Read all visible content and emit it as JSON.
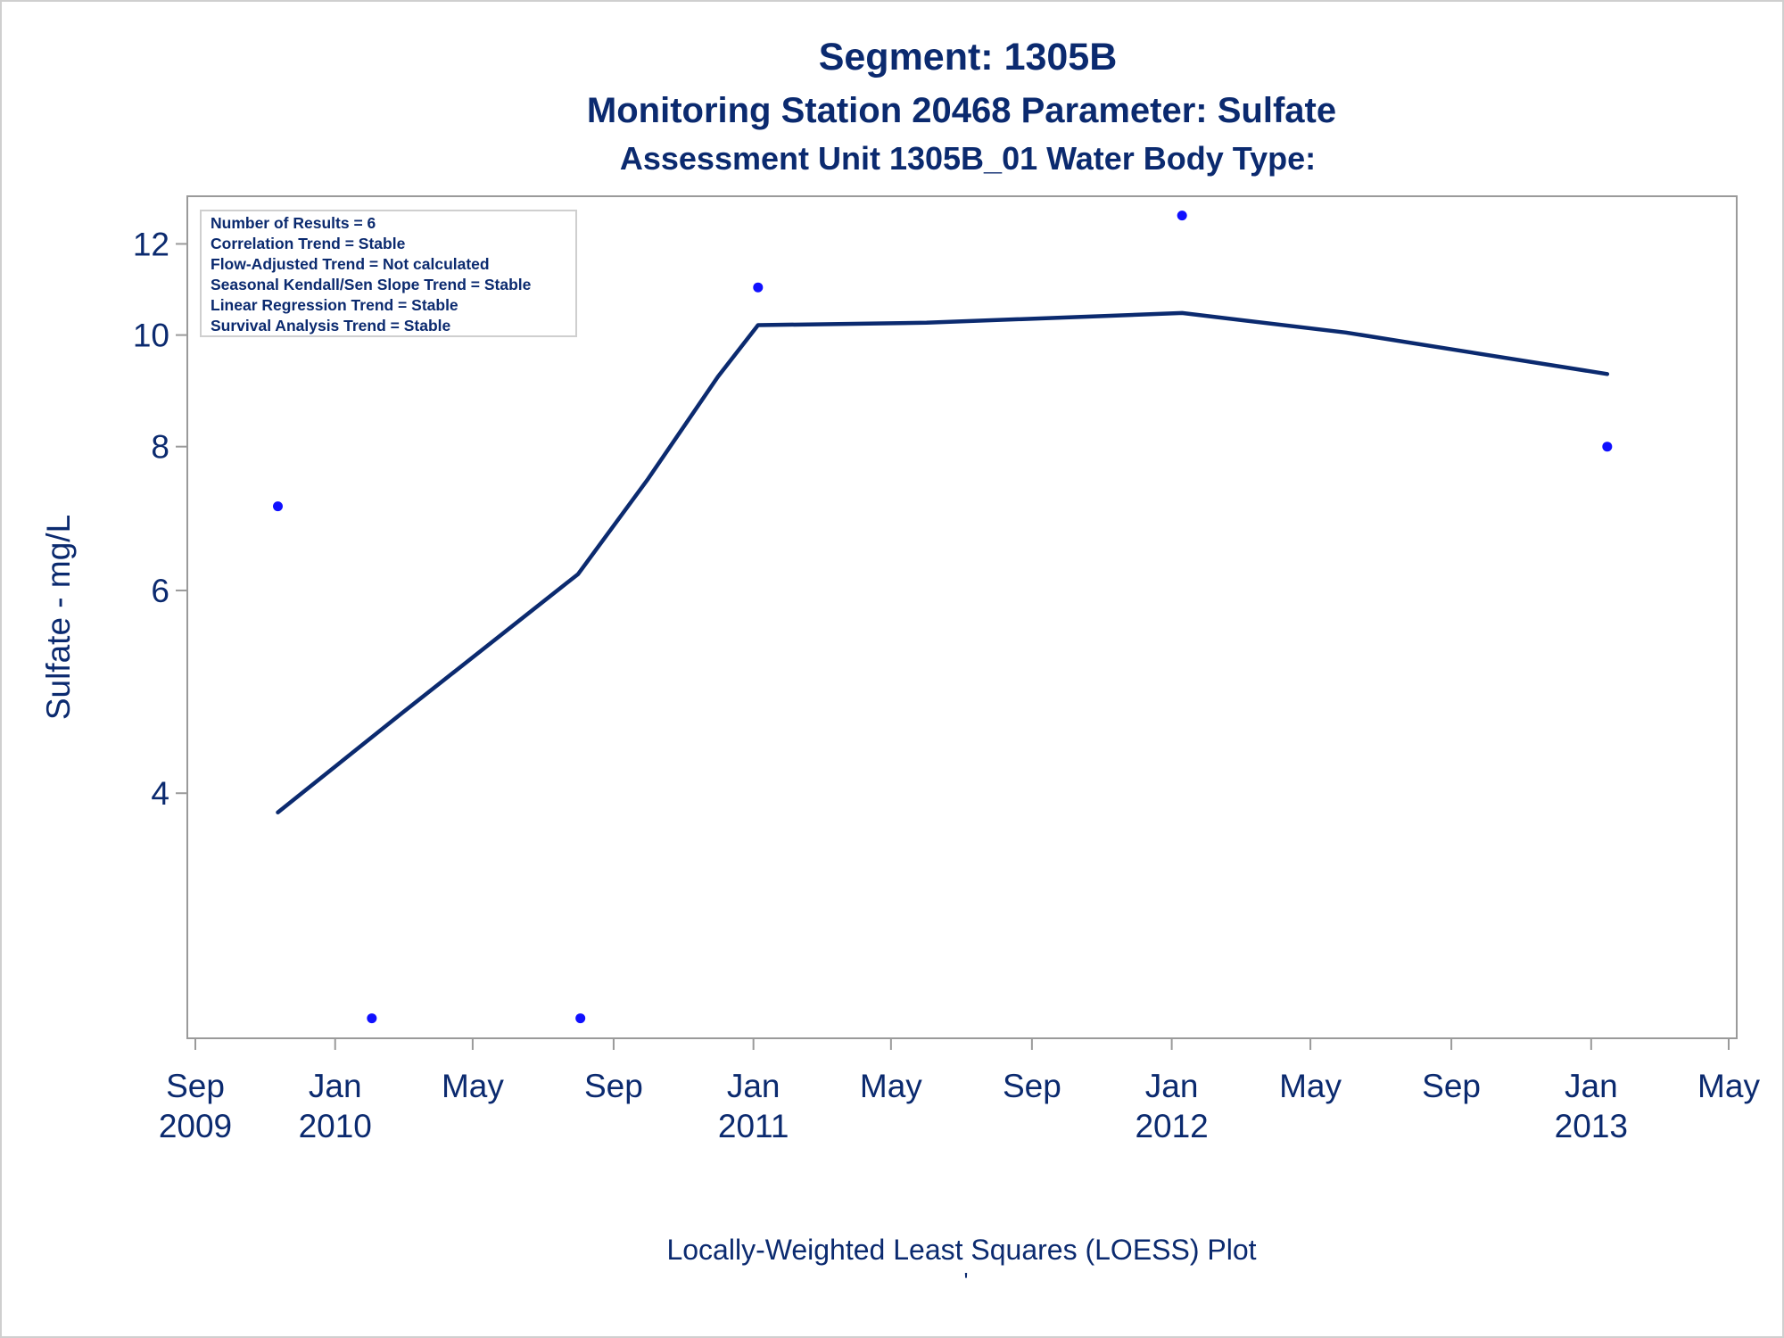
{
  "titles": {
    "line1": "Segment: 1305B",
    "line2": "Monitoring Station 20468 Parameter: Sulfate",
    "line3": "Assessment Unit 1305B_01   Water Body Type:"
  },
  "stats_box": [
    "Number of Results = 6",
    "Correlation Trend = Stable",
    "Flow-Adjusted Trend = Not calculated",
    "Seasonal Kendall/Sen Slope Trend = Stable",
    "Linear Regression Trend = Stable",
    "Survival Analysis Trend = Stable"
  ],
  "footnote": "Locally-Weighted Least Squares (LOESS) Plot",
  "footnote2": "'",
  "colors": {
    "text": "#0b2a6f",
    "line": "#0b2a6f",
    "points": "#1010ff",
    "frame": "#9a9a9a"
  },
  "chart_data": {
    "type": "scatter",
    "xlabel": "",
    "ylabel": "Sulfate - mg/L",
    "y_scale": "log",
    "ylim": [
      2.45,
      13.2
    ],
    "xlim": [
      "2009-08-25",
      "2013-05-08"
    ],
    "y_ticks": [
      4,
      6,
      8,
      10,
      12
    ],
    "x_ticks": [
      {
        "date": "2009-09-01",
        "month": "Sep",
        "year": "2009"
      },
      {
        "date": "2010-01-01",
        "month": "Jan",
        "year": "2010"
      },
      {
        "date": "2010-05-01",
        "month": "May",
        "year": ""
      },
      {
        "date": "2010-09-01",
        "month": "Sep",
        "year": ""
      },
      {
        "date": "2011-01-01",
        "month": "Jan",
        "year": "2011"
      },
      {
        "date": "2011-05-01",
        "month": "May",
        "year": ""
      },
      {
        "date": "2011-09-01",
        "month": "Sep",
        "year": ""
      },
      {
        "date": "2012-01-01",
        "month": "Jan",
        "year": "2012"
      },
      {
        "date": "2012-05-01",
        "month": "May",
        "year": ""
      },
      {
        "date": "2012-09-01",
        "month": "Sep",
        "year": ""
      },
      {
        "date": "2013-01-01",
        "month": "Jan",
        "year": "2013"
      },
      {
        "date": "2013-05-01",
        "month": "May",
        "year": ""
      }
    ],
    "points": [
      {
        "x": "2009-11-12",
        "y": 7.1
      },
      {
        "x": "2010-02-02",
        "y": 2.55
      },
      {
        "x": "2010-08-03",
        "y": 2.55
      },
      {
        "x": "2011-01-05",
        "y": 11.0
      },
      {
        "x": "2012-01-10",
        "y": 12.7
      },
      {
        "x": "2013-01-15",
        "y": 8.0
      }
    ],
    "loess": [
      {
        "x": "2009-11-12",
        "y": 3.85
      },
      {
        "x": "2010-03-01",
        "y": 4.7
      },
      {
        "x": "2010-08-01",
        "y": 6.2
      },
      {
        "x": "2010-10-01",
        "y": 7.5
      },
      {
        "x": "2010-12-01",
        "y": 9.2
      },
      {
        "x": "2011-01-05",
        "y": 10.2
      },
      {
        "x": "2011-06-01",
        "y": 10.25
      },
      {
        "x": "2012-01-10",
        "y": 10.45
      },
      {
        "x": "2012-06-01",
        "y": 10.05
      },
      {
        "x": "2013-01-15",
        "y": 9.25
      }
    ]
  }
}
